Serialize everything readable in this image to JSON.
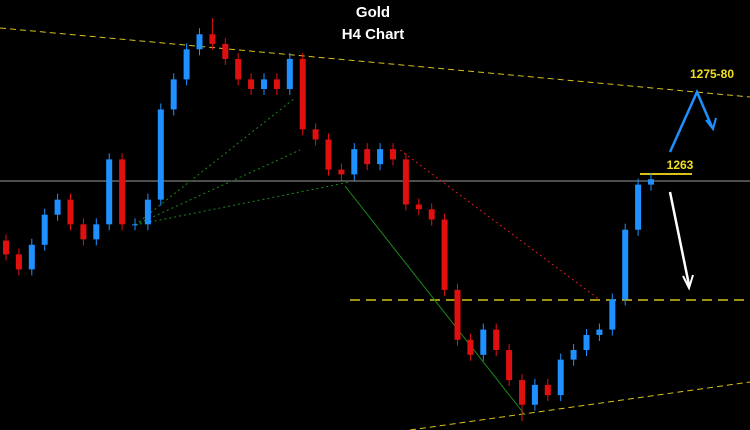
{
  "chart_data": {
    "type": "candlestick",
    "title": "Gold",
    "subtitle": "H4 Chart",
    "annotations": [
      "1275-80",
      "1263"
    ],
    "up_color": "#1e90ff",
    "down_color": "#e01010",
    "ylim": [
      1220.5,
      1292
    ],
    "open": [
      1252,
      1249.7,
      1247.2,
      1251.3,
      1256.3,
      1258.8,
      1254.7,
      1252.2,
      1254.7,
      1265.5,
      1254.7,
      1254.7,
      1258.8,
      1273.8,
      1278.8,
      1283.8,
      1286.3,
      1284.7,
      1282.2,
      1278.8,
      1277.2,
      1278.8,
      1277.2,
      1282.2,
      1270.5,
      1268.8,
      1263.8,
      1263,
      1267.2,
      1264.7,
      1267.2,
      1265.5,
      1258,
      1257.2,
      1255.5,
      1243.8,
      1235.5,
      1233,
      1237.2,
      1233.8,
      1228.8,
      1224.7,
      1228,
      1226.3,
      1232.2,
      1233.8,
      1236.3,
      1237.2,
      1242.2,
      1253.8,
      1261.3
    ],
    "high": [
      1253,
      1250.7,
      1252.3,
      1257.3,
      1259.8,
      1259.8,
      1255.7,
      1255.7,
      1266.5,
      1266.5,
      1255.7,
      1259.8,
      1274.8,
      1279.8,
      1284.8,
      1287.3,
      1289,
      1285.7,
      1283.2,
      1279.8,
      1279.8,
      1279.8,
      1283.2,
      1283.2,
      1271.5,
      1269.8,
      1264.8,
      1268.2,
      1268.2,
      1268.2,
      1268.2,
      1266.5,
      1259,
      1258.2,
      1256.5,
      1244.8,
      1236.5,
      1238.2,
      1238.2,
      1234.8,
      1229.8,
      1229,
      1229,
      1233.2,
      1234.8,
      1237.3,
      1238.2,
      1243.2,
      1254.8,
      1262.3,
      1263.2
    ],
    "low": [
      1248.7,
      1246.2,
      1246.2,
      1250.3,
      1255.3,
      1253.7,
      1251.2,
      1251.2,
      1253.7,
      1253.7,
      1253.7,
      1253.7,
      1257.8,
      1272.8,
      1277.8,
      1282.8,
      1283.7,
      1281.2,
      1277.8,
      1276.2,
      1276.2,
      1276.2,
      1276.2,
      1269.5,
      1267.8,
      1262.8,
      1262,
      1262,
      1263.7,
      1263.7,
      1264.5,
      1257,
      1256.2,
      1254.5,
      1242.8,
      1234.5,
      1232,
      1232,
      1232.8,
      1227.8,
      1222,
      1223.7,
      1225.3,
      1225.3,
      1231.2,
      1232.8,
      1235.3,
      1236.2,
      1241.2,
      1252.8,
      1260.3
    ],
    "close": [
      1249.7,
      1247.2,
      1251.3,
      1256.3,
      1258.8,
      1254.7,
      1252.2,
      1254.7,
      1265.5,
      1254.7,
      1254.7,
      1258.8,
      1273.8,
      1278.8,
      1283.8,
      1286.3,
      1284.7,
      1282.2,
      1278.8,
      1277.2,
      1278.8,
      1277.2,
      1282.2,
      1270.5,
      1268.8,
      1263.8,
      1263,
      1267.2,
      1264.7,
      1267.2,
      1265.5,
      1258,
      1257.2,
      1255.5,
      1243.8,
      1235.5,
      1233,
      1237.2,
      1233.8,
      1228.8,
      1224.7,
      1228,
      1226.3,
      1232.2,
      1233.8,
      1236.3,
      1237.2,
      1242.2,
      1253.8,
      1261.3,
      1262.2
    ]
  }
}
